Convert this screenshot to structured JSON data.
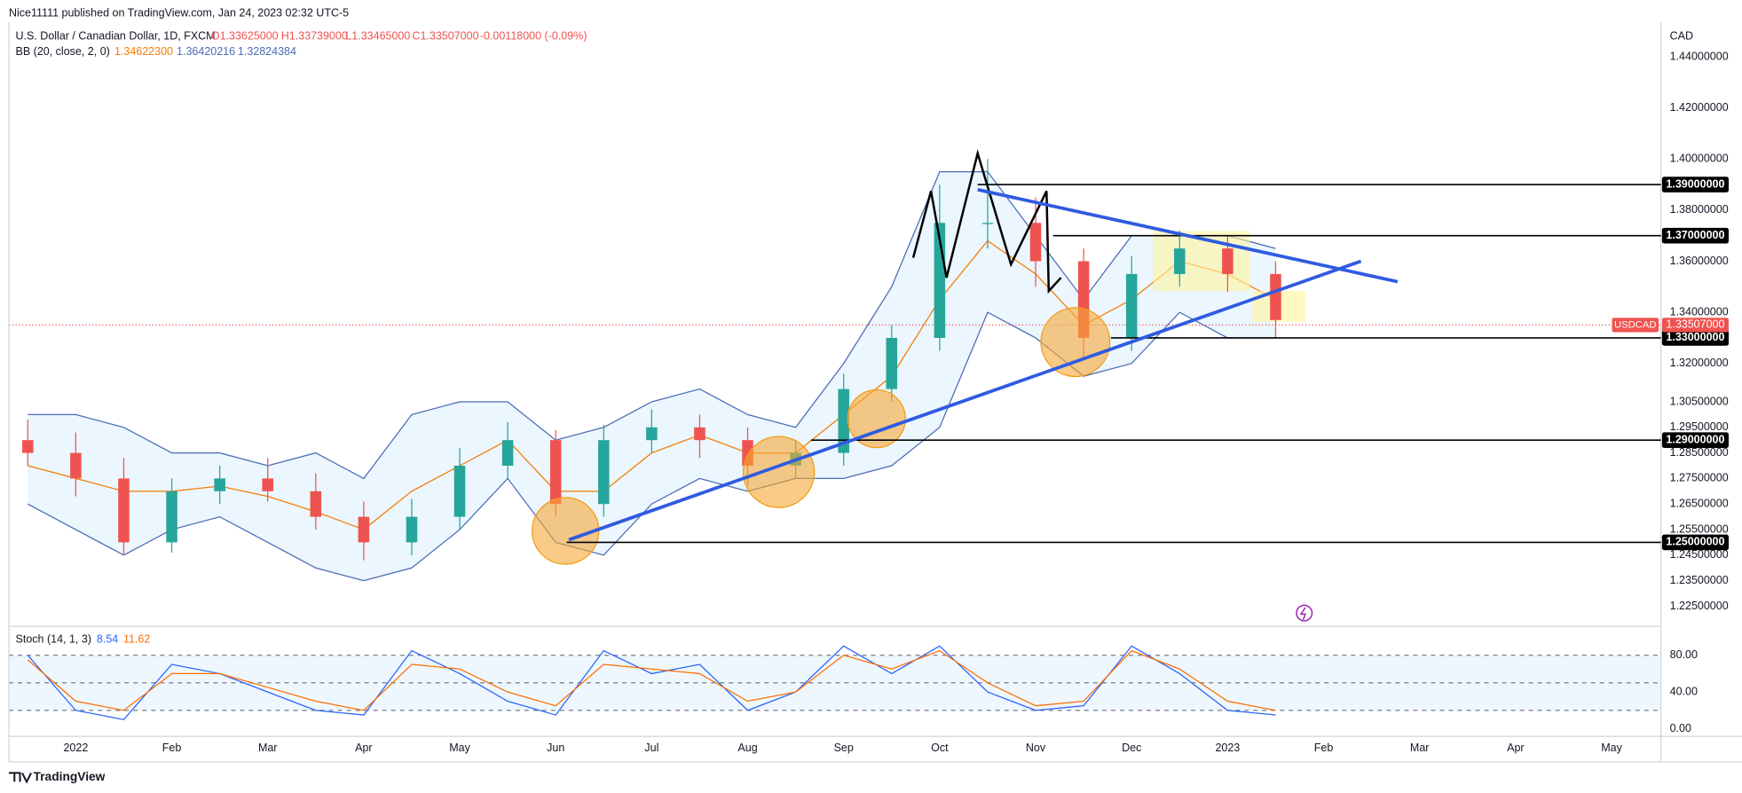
{
  "header": {
    "published": "Nice11111 published on TradingView.com, Jan 24, 2023 02:32 UTC-5",
    "symbol": "U.S. Dollar / Canadian Dollar, 1D, FXCM",
    "open": "O1.33625000",
    "high": "H1.33739000",
    "low": "L1.33465000",
    "close": "C1.33507000",
    "change": "-0.00118000 (-0.09%)",
    "bb": "BB (20, close, 2, 0)",
    "bb_basis": "1.34622300",
    "bb_upper": "1.36420216",
    "bb_lower": "1.32824384",
    "currency": "CAD",
    "footer": "TradingView"
  },
  "chart_data": [
    {
      "type": "candlestick",
      "categories": [
        null,
        "2022",
        null,
        "Feb",
        null,
        "Mar",
        null,
        "Apr",
        null,
        "May",
        null,
        "Jun",
        null,
        "Jul",
        null,
        "Aug",
        null,
        "Sep",
        null,
        "Oct",
        null,
        "Nov",
        null,
        "Dec",
        null,
        "2023",
        null,
        "Feb",
        null,
        "Mar",
        null,
        "Apr",
        null,
        "May"
      ],
      "open": [
        1.29,
        1.285,
        1.275,
        1.25,
        1.27,
        1.275,
        1.27,
        1.26,
        1.25,
        1.26,
        1.28,
        1.29,
        1.265,
        1.29,
        1.295,
        1.29,
        1.28,
        1.285,
        1.31,
        1.33,
        1.375,
        1.375,
        1.36,
        1.33,
        1.355,
        1.365,
        1.355,
        null,
        null,
        null,
        null,
        null,
        null,
        null
      ],
      "high": [
        1.298,
        1.293,
        1.283,
        1.275,
        1.28,
        1.283,
        1.277,
        1.266,
        1.267,
        1.287,
        1.297,
        1.294,
        1.296,
        1.302,
        1.3,
        1.295,
        1.29,
        1.316,
        1.335,
        1.39,
        1.4,
        1.385,
        1.365,
        1.362,
        1.372,
        1.37,
        1.36,
        null,
        null,
        null,
        null,
        null,
        null,
        null
      ],
      "low": [
        1.28,
        1.268,
        1.245,
        1.246,
        1.265,
        1.266,
        1.255,
        1.243,
        1.245,
        1.255,
        1.275,
        1.26,
        1.26,
        1.285,
        1.283,
        1.272,
        1.275,
        1.28,
        1.305,
        1.325,
        1.365,
        1.35,
        1.322,
        1.325,
        1.35,
        1.348,
        1.33,
        null,
        null,
        null,
        null,
        null,
        null,
        null
      ],
      "close": [
        1.285,
        1.275,
        1.25,
        1.27,
        1.275,
        1.27,
        1.26,
        1.25,
        1.26,
        1.28,
        1.29,
        1.265,
        1.29,
        1.295,
        1.29,
        1.28,
        1.285,
        1.31,
        1.33,
        1.375,
        1.375,
        1.36,
        1.33,
        1.355,
        1.365,
        1.355,
        1.337,
        null,
        null,
        null,
        null,
        null,
        null,
        null
      ],
      "up_color": "#26a69a",
      "down_color": "#ef5350",
      "series": [
        {
          "name": "upper",
          "color": "#4a6bb5",
          "values": [
            1.3,
            1.3,
            1.295,
            1.285,
            1.285,
            1.28,
            1.285,
            1.275,
            1.3,
            1.305,
            1.305,
            1.29,
            1.295,
            1.305,
            1.31,
            1.3,
            1.295,
            1.32,
            1.35,
            1.395,
            1.395,
            1.37,
            1.345,
            1.37,
            1.37,
            1.37,
            1.365,
            null,
            null,
            null,
            null,
            null,
            null,
            null
          ]
        },
        {
          "name": "basis",
          "color": "#f57c00",
          "values": [
            1.28,
            1.275,
            1.27,
            1.27,
            1.272,
            1.268,
            1.262,
            1.255,
            1.27,
            1.28,
            1.29,
            1.27,
            1.27,
            1.285,
            1.292,
            1.285,
            1.285,
            1.3,
            1.315,
            1.345,
            1.368,
            1.355,
            1.335,
            1.345,
            1.36,
            1.355,
            1.345,
            null,
            null,
            null,
            null,
            null,
            null,
            null
          ]
        },
        {
          "name": "lower",
          "color": "#4a6bb5",
          "values": [
            1.265,
            1.255,
            1.245,
            1.255,
            1.26,
            1.25,
            1.24,
            1.235,
            1.24,
            1.255,
            1.275,
            1.25,
            1.245,
            1.265,
            1.275,
            1.27,
            1.275,
            1.275,
            1.28,
            1.295,
            1.34,
            1.33,
            1.315,
            1.32,
            1.34,
            1.33,
            1.33,
            null,
            null,
            null,
            null,
            null,
            null,
            null
          ]
        }
      ],
      "ylim": [
        1.218,
        1.4535
      ],
      "yticks": [
        {
          "value": 1.44,
          "label": "1.44000000"
        },
        {
          "value": 1.42,
          "label": "1.42000000"
        },
        {
          "value": 1.4,
          "label": "1.40000000"
        },
        {
          "value": 1.38,
          "label": "1.38000000"
        },
        {
          "value": 1.36,
          "label": "1.36000000"
        },
        {
          "value": 1.34,
          "label": "1.34000000"
        },
        {
          "value": 1.32,
          "label": "1.32000000"
        },
        {
          "value": 1.305,
          "label": "1.30500000"
        },
        {
          "value": 1.295,
          "label": "1.29500000"
        },
        {
          "value": 1.285,
          "label": "1.28500000"
        },
        {
          "value": 1.275,
          "label": "1.27500000"
        },
        {
          "value": 1.265,
          "label": "1.26500000"
        },
        {
          "value": 1.255,
          "label": "1.25500000"
        },
        {
          "value": 1.245,
          "label": "1.24500000"
        },
        {
          "value": 1.235,
          "label": "1.23500000"
        },
        {
          "value": 1.225,
          "label": "1.22500000"
        }
      ],
      "levels": [
        {
          "value": 1.39,
          "label": "1.39000000"
        },
        {
          "value": 1.37,
          "label": "1.37000000"
        },
        {
          "value": 1.33,
          "label": "1.33000000"
        },
        {
          "value": 1.29,
          "label": "1.29000000"
        },
        {
          "value": 1.25,
          "label": "1.25000000"
        }
      ],
      "trendlines": [
        {
          "color": "#2f5be0",
          "values": [
            1.251,
            1.36
          ]
        },
        {
          "color": "#2f5be0",
          "values": [
            1.388,
            1.352
          ]
        }
      ],
      "last": {
        "name": "USDCAD",
        "value": 1.33507,
        "label": "1.33507000",
        "color": "#ef5350"
      }
    },
    {
      "type": "line",
      "title": "Stoch (14, 1, 3)",
      "series": [
        {
          "name": "8.54",
          "color": "#2962ff",
          "values": [
            80,
            20,
            10,
            70,
            60,
            40,
            20,
            15,
            85,
            60,
            30,
            15,
            85,
            60,
            70,
            20,
            40,
            90,
            60,
            90,
            40,
            20,
            25,
            90,
            60,
            20,
            15,
            null,
            null,
            null,
            null,
            null,
            null,
            null
          ]
        },
        {
          "name": "11.62",
          "color": "#ff6d00",
          "values": [
            75,
            30,
            20,
            60,
            60,
            45,
            30,
            20,
            70,
            65,
            40,
            25,
            70,
            65,
            60,
            30,
            40,
            80,
            65,
            85,
            50,
            25,
            30,
            85,
            65,
            30,
            20,
            null,
            null,
            null,
            null,
            null,
            null,
            null
          ]
        }
      ],
      "ylim": [
        -7,
        109
      ],
      "yticks": [
        {
          "value": 80,
          "label": "80.00"
        },
        {
          "value": 40,
          "label": "40.00"
        },
        {
          "value": 0,
          "label": "0.00"
        }
      ],
      "levels": [
        80,
        50,
        20
      ]
    }
  ]
}
